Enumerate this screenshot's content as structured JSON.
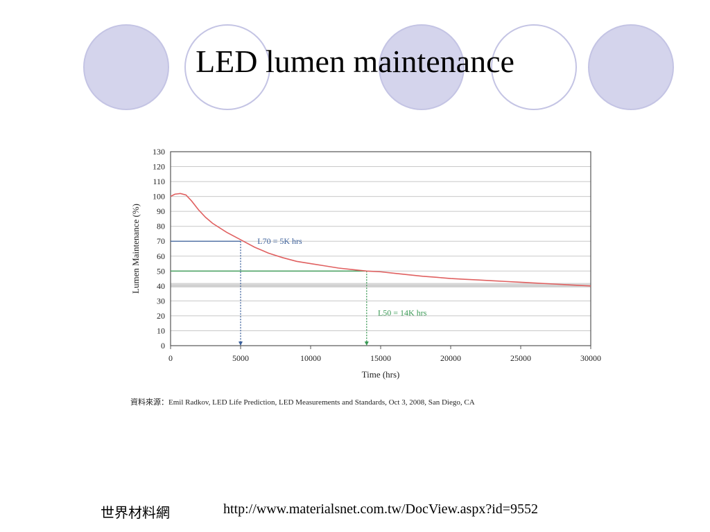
{
  "slide": {
    "title": "LED lumen maintenance",
    "source_note": "資料來源：Emil Radkov, LED Life Prediction, LED Measurements and Standards, Oct 3, 2008, San Diego, CA",
    "footer_left": "世界材料網",
    "footer_right": "http://www.materialsnet.com.tw/DocView.aspx?id=9552"
  },
  "colors": {
    "circle_fill": "#d4d4ec",
    "circle_stroke": "#c4c4e4",
    "curve": "#e06060",
    "l70_marker": "#3a5f9a",
    "l50_marker": "#3a9a55",
    "gridline": "#c8c8c8",
    "band": "#d6d6d6"
  },
  "chart_data": {
    "type": "line",
    "xlabel": "Time (hrs)",
    "ylabel": "Lumen Maintenance (%)",
    "xlim": [
      0,
      30000
    ],
    "ylim": [
      0,
      130
    ],
    "x_ticks": [
      0,
      5000,
      10000,
      15000,
      20000,
      25000,
      30000
    ],
    "y_ticks": [
      0,
      10,
      20,
      30,
      40,
      50,
      60,
      70,
      80,
      90,
      100,
      110,
      120,
      130
    ],
    "grid": true,
    "band": [
      39,
      42
    ],
    "series": [
      {
        "x": [
          0,
          300,
          700,
          1100,
          1500,
          2000,
          2500,
          3000,
          4000,
          5000,
          6000,
          7000,
          8000,
          9000,
          10000,
          11000,
          12000,
          13000,
          14000,
          15000,
          16000,
          17000,
          18000,
          19000,
          20000,
          21000,
          22000,
          23000,
          24000,
          25000,
          26000,
          27000,
          28000,
          29000,
          30000
        ],
        "y": [
          100,
          101.5,
          102,
          101,
          97,
          91,
          86,
          82,
          76,
          71,
          66,
          62,
          59,
          56.5,
          55,
          53.5,
          52,
          51,
          50,
          49.5,
          48.5,
          47.5,
          46.5,
          45.8,
          45,
          44.5,
          44,
          43.5,
          43,
          42.5,
          42,
          41.5,
          41,
          40.5,
          40
        ]
      }
    ],
    "annotations": [
      {
        "label": "L70 = 5K hrs",
        "x": 5000,
        "y": 70,
        "label_x": 6200,
        "label_y": 70
      },
      {
        "label": "L50 = 14K hrs",
        "x": 14000,
        "y": 50,
        "label_x": 14800,
        "label_y": 22
      }
    ]
  }
}
